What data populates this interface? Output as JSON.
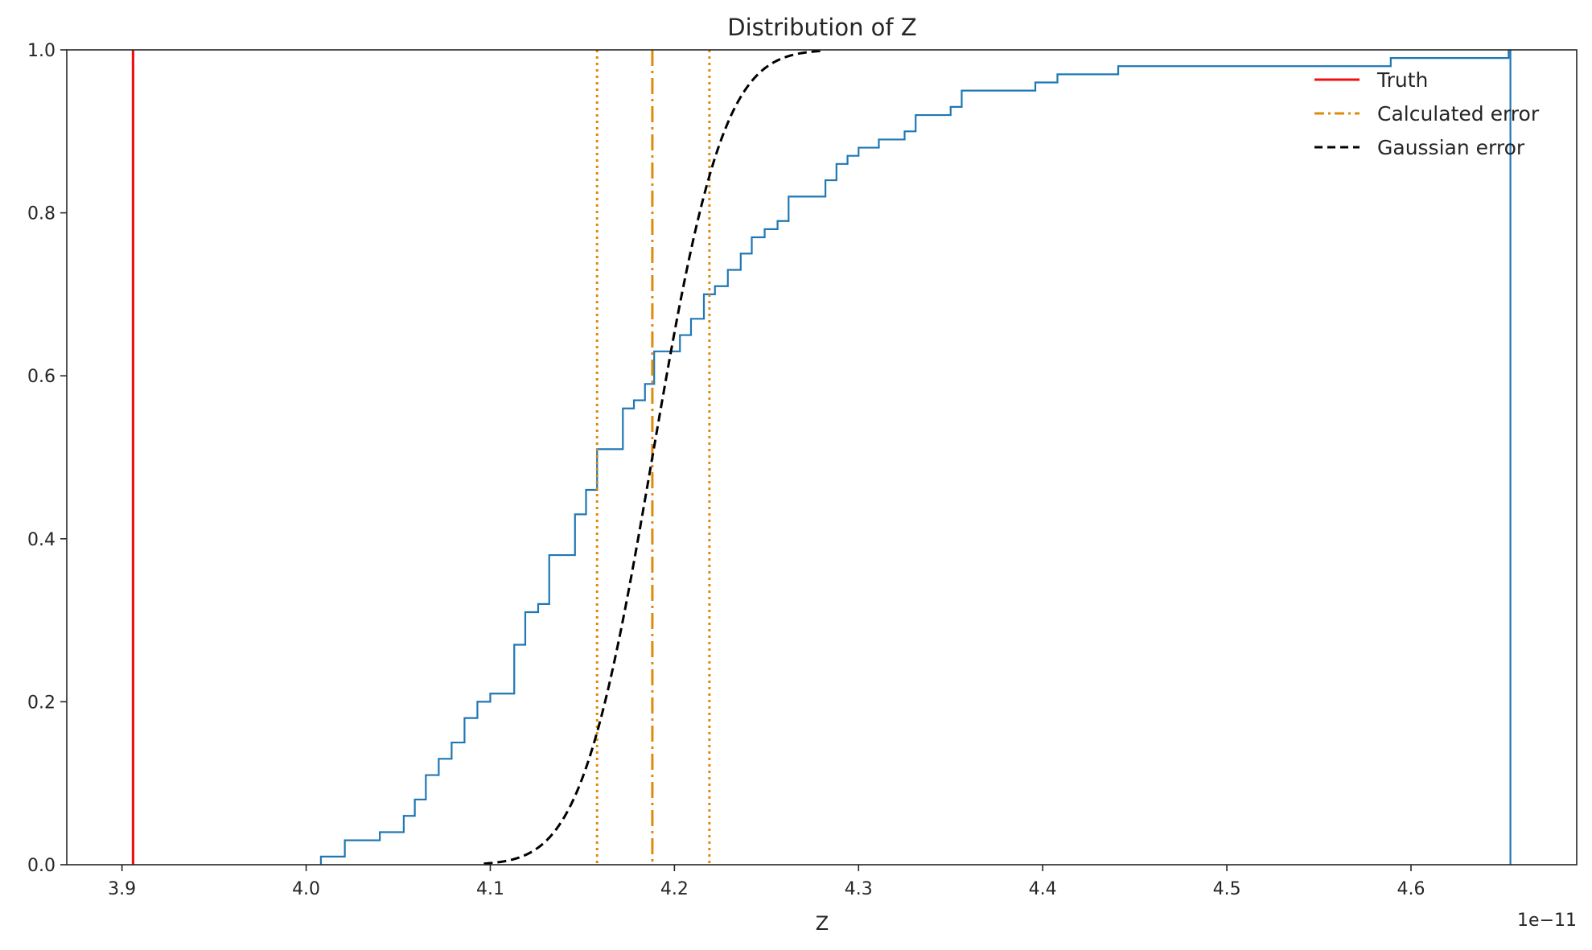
{
  "chart_data": {
    "type": "line",
    "title": "Distribution of Z",
    "xlabel": "Z",
    "ylabel": "",
    "offset_label": "1e−11",
    "xlim": [
      3.87,
      4.69
    ],
    "ylim": [
      0.0,
      1.0
    ],
    "x_ticks": [
      3.9,
      4.0,
      4.1,
      4.2,
      4.3,
      4.4,
      4.5,
      4.6
    ],
    "x_tick_labels": [
      "3.9",
      "4.0",
      "4.1",
      "4.2",
      "4.3",
      "4.4",
      "4.5",
      "4.6"
    ],
    "y_ticks": [
      0.0,
      0.2,
      0.4,
      0.6,
      0.8,
      1.0
    ],
    "y_tick_labels": [
      "0.0",
      "0.2",
      "0.4",
      "0.6",
      "0.8",
      "1.0"
    ],
    "grid": false,
    "legend_position": "top-right",
    "colors": {
      "ecdf": "#1f77b4",
      "truth": "#ee1111",
      "calculated": "#e08a0b",
      "gaussian": "#000000",
      "axes": "#262626"
    },
    "legend": [
      {
        "label": "Truth",
        "style": "solid",
        "color": "#ee1111"
      },
      {
        "label": "Calculated error",
        "style": "dashdot",
        "color": "#e08a0b"
      },
      {
        "label": "Gaussian error",
        "style": "dashed",
        "color": "#000000"
      }
    ],
    "truth_x": 3.906,
    "calculated_error": {
      "center": 4.188,
      "lower": 4.158,
      "upper": 4.219
    },
    "gaussian_error": {
      "mean": 4.188,
      "sigma": 0.0305
    },
    "ecdf_steps": [
      [
        4.008,
        0.01
      ],
      [
        4.021,
        0.03
      ],
      [
        4.04,
        0.04
      ],
      [
        4.053,
        0.06
      ],
      [
        4.059,
        0.08
      ],
      [
        4.065,
        0.11
      ],
      [
        4.072,
        0.13
      ],
      [
        4.079,
        0.15
      ],
      [
        4.086,
        0.18
      ],
      [
        4.093,
        0.2
      ],
      [
        4.1,
        0.21
      ],
      [
        4.113,
        0.27
      ],
      [
        4.119,
        0.31
      ],
      [
        4.126,
        0.32
      ],
      [
        4.132,
        0.38
      ],
      [
        4.146,
        0.43
      ],
      [
        4.152,
        0.46
      ],
      [
        4.158,
        0.51
      ],
      [
        4.172,
        0.56
      ],
      [
        4.178,
        0.57
      ],
      [
        4.184,
        0.59
      ],
      [
        4.189,
        0.63
      ],
      [
        4.203,
        0.65
      ],
      [
        4.209,
        0.67
      ],
      [
        4.216,
        0.7
      ],
      [
        4.222,
        0.71
      ],
      [
        4.229,
        0.73
      ],
      [
        4.236,
        0.75
      ],
      [
        4.242,
        0.77
      ],
      [
        4.249,
        0.78
      ],
      [
        4.256,
        0.79
      ],
      [
        4.262,
        0.82
      ],
      [
        4.282,
        0.84
      ],
      [
        4.288,
        0.86
      ],
      [
        4.294,
        0.87
      ],
      [
        4.3,
        0.88
      ],
      [
        4.311,
        0.89
      ],
      [
        4.325,
        0.9
      ],
      [
        4.331,
        0.92
      ],
      [
        4.35,
        0.93
      ],
      [
        4.356,
        0.95
      ],
      [
        4.396,
        0.96
      ],
      [
        4.408,
        0.97
      ],
      [
        4.441,
        0.98
      ],
      [
        4.589,
        0.99
      ],
      [
        4.653,
        1.0
      ]
    ],
    "ecdf_end_x": 4.654
  }
}
